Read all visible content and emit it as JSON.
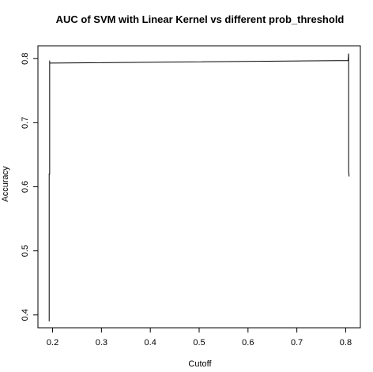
{
  "chart_data": {
    "type": "line",
    "title": "AUC of SVM with Linear Kernel vs different prob_threshold",
    "xlabel": "Cutoff",
    "ylabel": "Accuracy",
    "xlim": [
      0.17,
      0.83
    ],
    "ylim": [
      0.38,
      0.82
    ],
    "xticks": [
      0.2,
      0.3,
      0.4,
      0.5,
      0.6,
      0.7,
      0.8
    ],
    "xtick_labels": [
      "0.2",
      "0.3",
      "0.4",
      "0.5",
      "0.6",
      "0.7",
      "0.8"
    ],
    "yticks": [
      0.4,
      0.5,
      0.6,
      0.7,
      0.8
    ],
    "ytick_labels": [
      "0.4",
      "0.5",
      "0.6",
      "0.7",
      "0.8"
    ],
    "grid": false,
    "legend": "none",
    "line_color": "#000000",
    "series": [
      {
        "x": [
          0.193,
          0.193,
          0.194,
          0.194,
          0.194,
          0.195,
          0.805,
          0.806,
          0.806,
          0.806,
          0.807
        ],
        "y": [
          0.39,
          0.62,
          0.62,
          0.797,
          0.793,
          0.793,
          0.797,
          0.808,
          0.797,
          0.625,
          0.616
        ]
      }
    ]
  }
}
